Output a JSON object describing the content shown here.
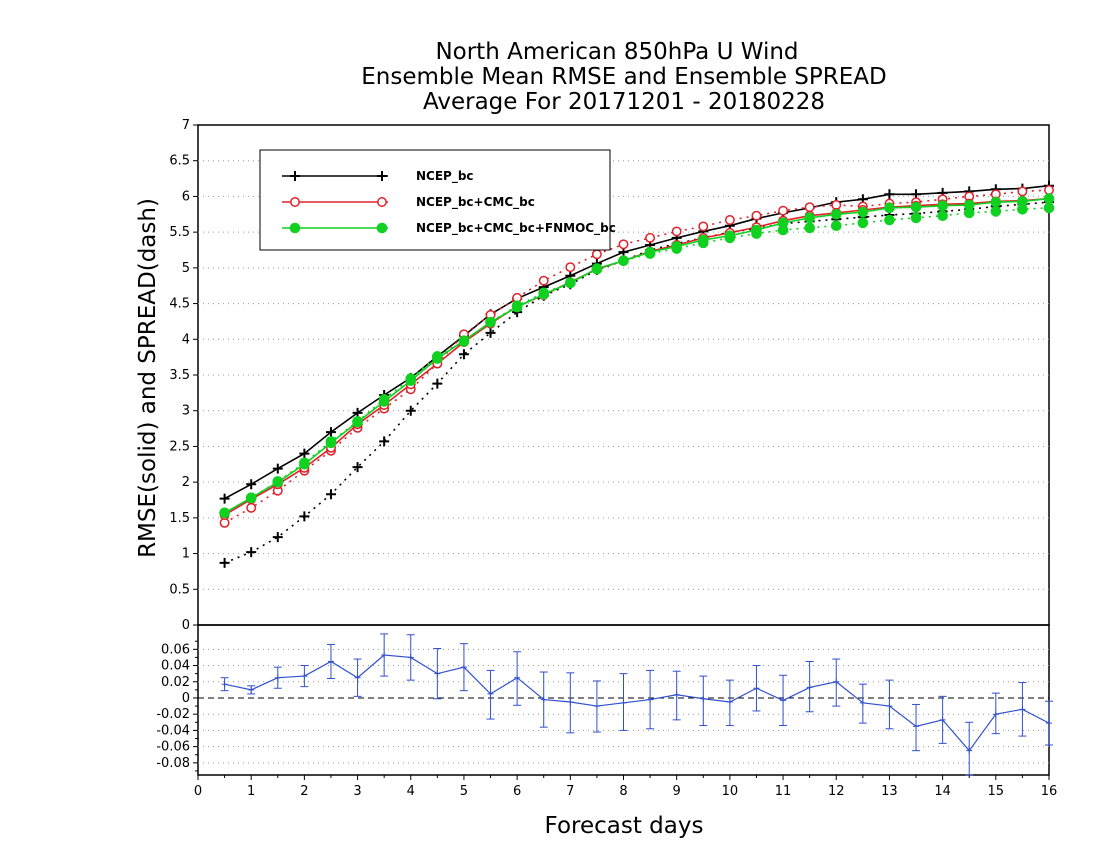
{
  "chart_data": [
    {
      "type": "line",
      "title_lines": [
        "North American 850hPa U Wind",
        "Ensemble Mean RMSE and Ensemble SPREAD",
        "Average For 20171201 - 20180228"
      ],
      "xlabel": "Forecast days",
      "ylabel": "RMSE(solid) and SPREAD(dash)",
      "xlim": [
        0,
        16
      ],
      "ylim": [
        0,
        7
      ],
      "x_ticks": [
        "0",
        "1",
        "2",
        "3",
        "4",
        "5",
        "6",
        "7",
        "8",
        "9",
        "10",
        "11",
        "12",
        "13",
        "14",
        "15",
        "16"
      ],
      "y_ticks": [
        "0",
        "0.5",
        "1",
        "1.5",
        "2",
        "2.5",
        "3",
        "3.5",
        "4",
        "4.5",
        "5",
        "5.5",
        "6",
        "6.5",
        "7"
      ],
      "grid": true,
      "legend_position": "top-left",
      "x": [
        0.5,
        1,
        1.5,
        2,
        2.5,
        3,
        3.5,
        4,
        4.5,
        5,
        5.5,
        6,
        6.5,
        7,
        7.5,
        8,
        8.5,
        9,
        9.5,
        10,
        10.5,
        11,
        11.5,
        12,
        12.5,
        13,
        13.5,
        14,
        14.5,
        15,
        15.5,
        16
      ],
      "series": [
        {
          "name": "NCEP_bc",
          "color": "#000000",
          "marker": "plus",
          "rmse": [
            1.77,
            1.97,
            2.19,
            2.4,
            2.7,
            2.97,
            3.22,
            3.46,
            3.76,
            4.05,
            4.35,
            4.57,
            4.73,
            4.89,
            5.06,
            5.22,
            5.32,
            5.42,
            5.51,
            5.59,
            5.69,
            5.77,
            5.84,
            5.92,
            5.96,
            6.03,
            6.03,
            6.05,
            6.07,
            6.1,
            6.11,
            6.15
          ],
          "spread": [
            0.87,
            1.02,
            1.23,
            1.52,
            1.83,
            2.21,
            2.57,
            3.0,
            3.38,
            3.79,
            4.09,
            4.38,
            4.61,
            4.77,
            4.97,
            5.1,
            5.25,
            5.34,
            5.42,
            5.5,
            5.55,
            5.62,
            5.65,
            5.68,
            5.71,
            5.74,
            5.76,
            5.79,
            5.82,
            5.86,
            5.89,
            5.92
          ]
        },
        {
          "name": "NCEP_bc+CMC_bc",
          "color": "#e0202a",
          "marker": "open-circle",
          "rmse": [
            1.54,
            1.76,
            1.97,
            2.2,
            2.48,
            2.81,
            3.08,
            3.37,
            3.66,
            3.96,
            4.22,
            4.46,
            4.62,
            4.8,
            4.98,
            5.1,
            5.23,
            5.32,
            5.42,
            5.49,
            5.57,
            5.66,
            5.73,
            5.77,
            5.81,
            5.85,
            5.87,
            5.89,
            5.9,
            5.93,
            5.94,
            5.97
          ],
          "spread": [
            1.43,
            1.64,
            1.88,
            2.16,
            2.44,
            2.76,
            3.03,
            3.3,
            3.66,
            4.07,
            4.34,
            4.58,
            4.82,
            5.01,
            5.19,
            5.33,
            5.42,
            5.51,
            5.58,
            5.67,
            5.73,
            5.8,
            5.85,
            5.88,
            5.86,
            5.9,
            5.92,
            5.96,
            6.0,
            6.03,
            6.07,
            6.09
          ]
        },
        {
          "name": "NCEP_bc+CMC_bc+FNMOC_bc",
          "color": "#10d020",
          "marker": "filled-circle",
          "rmse": [
            1.57,
            1.78,
            2.0,
            2.25,
            2.55,
            2.84,
            3.13,
            3.42,
            3.73,
            3.98,
            4.24,
            4.45,
            4.63,
            4.79,
            4.99,
            5.1,
            5.22,
            5.3,
            5.39,
            5.45,
            5.53,
            5.63,
            5.7,
            5.75,
            5.78,
            5.84,
            5.85,
            5.87,
            5.88,
            5.92,
            5.93,
            5.97
          ],
          "spread": [
            1.57,
            1.78,
            2.01,
            2.27,
            2.57,
            2.85,
            3.16,
            3.45,
            3.76,
            3.97,
            4.24,
            4.47,
            4.65,
            4.79,
            4.98,
            5.1,
            5.2,
            5.27,
            5.35,
            5.42,
            5.48,
            5.53,
            5.56,
            5.59,
            5.63,
            5.67,
            5.7,
            5.73,
            5.77,
            5.79,
            5.82,
            5.84
          ]
        }
      ]
    },
    {
      "type": "line",
      "xlim": [
        0,
        16
      ],
      "ylim": [
        -0.095,
        0.09
      ],
      "x_ticks": [
        "0",
        "1",
        "2",
        "3",
        "4",
        "5",
        "6",
        "7",
        "8",
        "9",
        "10",
        "11",
        "12",
        "13",
        "14",
        "15",
        "16"
      ],
      "y_ticks": [
        "0.06",
        "0.04",
        "0.02",
        "0",
        "-0.02",
        "-0.04",
        "-0.06",
        "-0.08"
      ],
      "zero_line": true,
      "grid": true,
      "series": [
        {
          "color": "#3050d0",
          "x": [
            0.5,
            1,
            1.5,
            2,
            2.5,
            3,
            3.5,
            4,
            4.5,
            5,
            5.5,
            6,
            6.5,
            7,
            7.5,
            8,
            8.5,
            9,
            9.5,
            10,
            10.5,
            11,
            11.5,
            12,
            12.5,
            13,
            13.5,
            14,
            14.5,
            15,
            15.5,
            16
          ],
          "mean": [
            0.017,
            0.01,
            0.025,
            0.027,
            0.045,
            0.025,
            0.053,
            0.05,
            0.03,
            0.038,
            0.005,
            0.025,
            -0.002,
            -0.005,
            -0.01,
            -0.006,
            -0.002,
            0.004,
            -0.001,
            -0.005,
            0.012,
            -0.003,
            0.013,
            0.02,
            -0.006,
            -0.01,
            -0.035,
            -0.027,
            -0.065,
            -0.02,
            -0.014,
            -0.031
          ],
          "upper": [
            0.025,
            0.015,
            0.038,
            0.04,
            0.066,
            0.048,
            0.079,
            0.078,
            0.061,
            0.067,
            0.034,
            0.057,
            0.032,
            0.031,
            0.021,
            0.03,
            0.034,
            0.033,
            0.027,
            0.022,
            0.04,
            0.028,
            0.045,
            0.048,
            0.017,
            0.022,
            -0.008,
            0.002,
            -0.03,
            0.006,
            0.019,
            -0.004
          ],
          "lower": [
            0.009,
            0.005,
            0.012,
            0.014,
            0.024,
            0.002,
            0.027,
            0.022,
            -0.001,
            0.009,
            -0.026,
            -0.009,
            -0.036,
            -0.043,
            -0.042,
            -0.04,
            -0.038,
            -0.027,
            -0.034,
            -0.034,
            -0.016,
            -0.034,
            -0.017,
            -0.01,
            -0.031,
            -0.038,
            -0.065,
            -0.056,
            -0.095,
            -0.044,
            -0.047,
            -0.058
          ]
        }
      ]
    }
  ]
}
